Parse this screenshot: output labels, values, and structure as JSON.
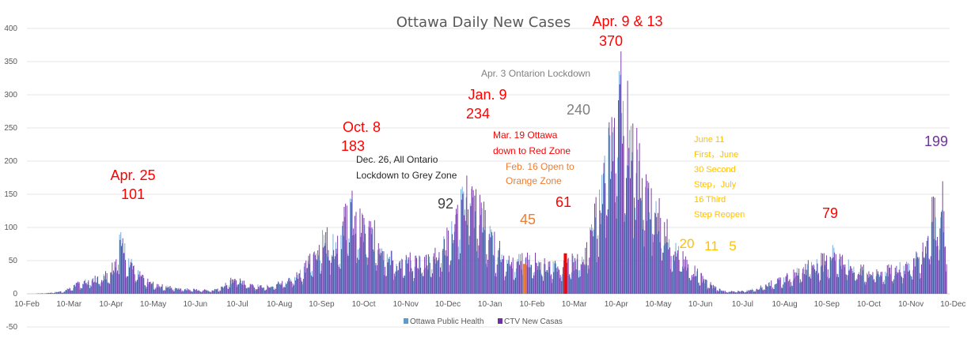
{
  "chart_data": {
    "type": "bar",
    "title": "Ottawa Daily New Cases",
    "xlabel": "",
    "ylabel": "",
    "ylim": [
      -50,
      400
    ],
    "y_ticks": [
      -50,
      0,
      50,
      100,
      150,
      200,
      250,
      300,
      350,
      400
    ],
    "x_tick_labels": [
      "10-Feb",
      "10-Mar",
      "10-Apr",
      "10-May",
      "10-Jun",
      "10-Jul",
      "10-Aug",
      "10-Sep",
      "10-Oct",
      "10-Nov",
      "10-Dec",
      "10-Jan",
      "10-Feb",
      "10-Mar",
      "10-Apr",
      "10-May",
      "10-Jun",
      "10-Jul",
      "10-Aug",
      "10-Sep",
      "10-Oct",
      "10-Nov",
      "10-Dec"
    ],
    "grid": "horizontal",
    "legend_position": "bottom",
    "series": [
      {
        "name": "Ottawa Public Health",
        "color": "#5b9bd5"
      },
      {
        "name": "CTV New Casas",
        "color": "#7030a0"
      }
    ],
    "envelope_keypoints": [
      [
        0,
        0
      ],
      [
        14,
        1
      ],
      [
        28,
        5
      ],
      [
        38,
        18
      ],
      [
        48,
        25
      ],
      [
        58,
        32
      ],
      [
        66,
        55
      ],
      [
        70,
        101
      ],
      [
        76,
        70
      ],
      [
        82,
        40
      ],
      [
        92,
        20
      ],
      [
        102,
        14
      ],
      [
        122,
        8
      ],
      [
        140,
        6
      ],
      [
        148,
        12
      ],
      [
        154,
        25
      ],
      [
        160,
        30
      ],
      [
        168,
        15
      ],
      [
        182,
        14
      ],
      [
        196,
        22
      ],
      [
        210,
        45
      ],
      [
        220,
        85
      ],
      [
        226,
        105
      ],
      [
        232,
        90
      ],
      [
        238,
        110
      ],
      [
        242,
        145
      ],
      [
        244,
        170
      ],
      [
        248,
        130
      ],
      [
        256,
        120
      ],
      [
        266,
        100
      ],
      [
        274,
        70
      ],
      [
        282,
        55
      ],
      [
        290,
        60
      ],
      [
        300,
        60
      ],
      [
        310,
        75
      ],
      [
        316,
        92
      ],
      [
        320,
        100
      ],
      [
        326,
        140
      ],
      [
        332,
        180
      ],
      [
        334,
        234
      ],
      [
        338,
        165
      ],
      [
        344,
        150
      ],
      [
        350,
        110
      ],
      [
        354,
        90
      ],
      [
        362,
        65
      ],
      [
        372,
        60
      ],
      [
        382,
        62
      ],
      [
        392,
        55
      ],
      [
        400,
        50
      ],
      [
        410,
        55
      ],
      [
        416,
        61
      ],
      [
        424,
        78
      ],
      [
        430,
        130
      ],
      [
        436,
        200
      ],
      [
        440,
        240
      ],
      [
        444,
        300
      ],
      [
        446,
        330
      ],
      [
        448,
        370
      ],
      [
        452,
        355
      ],
      [
        456,
        300
      ],
      [
        460,
        255
      ],
      [
        466,
        210
      ],
      [
        472,
        170
      ],
      [
        480,
        140
      ],
      [
        490,
        90
      ],
      [
        500,
        50
      ],
      [
        508,
        40
      ],
      [
        516,
        20
      ],
      [
        522,
        11
      ],
      [
        528,
        5
      ],
      [
        536,
        4
      ],
      [
        546,
        6
      ],
      [
        554,
        10
      ],
      [
        562,
        18
      ],
      [
        572,
        25
      ],
      [
        584,
        40
      ],
      [
        594,
        55
      ],
      [
        604,
        60
      ],
      [
        612,
        79
      ],
      [
        620,
        55
      ],
      [
        630,
        45
      ],
      [
        640,
        38
      ],
      [
        650,
        40
      ],
      [
        660,
        48
      ],
      [
        670,
        55
      ],
      [
        676,
        70
      ],
      [
        682,
        90
      ],
      [
        686,
        165
      ],
      [
        690,
        120
      ],
      [
        693,
        199
      ],
      [
        695,
        130
      ],
      [
        698,
        0
      ]
    ],
    "annotations": [
      {
        "text": "Apr. 25",
        "color": "#ff0000"
      },
      {
        "text": "101",
        "color": "#ff0000"
      },
      {
        "text": "Oct. 8",
        "color": "#ff0000"
      },
      {
        "text": "183",
        "color": "#ff0000"
      },
      {
        "text": "Dec. 26, All Ontario",
        "color": "#262626"
      },
      {
        "text": "Lockdown to Grey Zone",
        "color": "#262626"
      },
      {
        "text": "92",
        "color": "#404040"
      },
      {
        "text": "Jan. 9",
        "color": "#ff0000"
      },
      {
        "text": "234",
        "color": "#ff0000"
      },
      {
        "text": "Mar. 19 Ottawa",
        "color": "#ff0000"
      },
      {
        "text": "down to Red Zone",
        "color": "#ff0000"
      },
      {
        "text": "Feb. 16 Open to",
        "color": "#ed7d31"
      },
      {
        "text": "Orange Zone",
        "color": "#ed7d31"
      },
      {
        "text": "45",
        "color": "#ed7d31"
      },
      {
        "text": "61",
        "color": "#ff0000"
      },
      {
        "text": "Apr. 3 Ontarion Lockdown",
        "color": "#808080"
      },
      {
        "text": "240",
        "color": "#808080"
      },
      {
        "text": "Apr. 9 & 13",
        "color": "#ff0000"
      },
      {
        "text": "370",
        "color": "#ff0000"
      },
      {
        "text": "June 11",
        "color": "#ffc000"
      },
      {
        "text": "First，June",
        "color": "#ffc000"
      },
      {
        "text": "30 Second",
        "color": "#ffc000"
      },
      {
        "text": "Step，July",
        "color": "#ffc000"
      },
      {
        "text": "16 Third",
        "color": "#ffc000"
      },
      {
        "text": "Step Reopen",
        "color": "#ffc000"
      },
      {
        "text": "20",
        "color": "#ffc000"
      },
      {
        "text": "11",
        "color": "#ffc000"
      },
      {
        "text": "5",
        "color": "#ffc000"
      },
      {
        "text": "79",
        "color": "#ff0000"
      },
      {
        "text": "199",
        "color": "#7030a0"
      }
    ],
    "highlight_bars": [
      {
        "day": 377,
        "value": 45,
        "color": "#ed7d31"
      },
      {
        "day": 408,
        "value": 61,
        "color": "#ff0000"
      }
    ]
  }
}
